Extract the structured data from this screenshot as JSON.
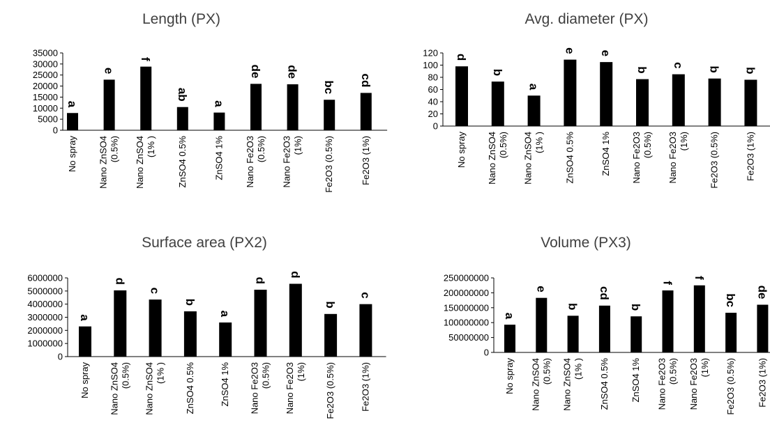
{
  "chart_data": [
    {
      "type": "bar",
      "title": "Length (PX)",
      "xlabel": "",
      "ylabel": "",
      "ylim": [
        0,
        35000
      ],
      "yticks": [
        "35000",
        "30000",
        "25000",
        "20000",
        "15000",
        "10000",
        "5000",
        "0"
      ],
      "categories": [
        [
          "No spray"
        ],
        [
          "Nano ZnSO4",
          "(0.5%)"
        ],
        [
          "Nano ZnSO4",
          "(1% )"
        ],
        [
          "ZnSO4 0.5%"
        ],
        [
          "ZnSO4 1%"
        ],
        [
          "Nano Fe2O3",
          "(0.5%)"
        ],
        [
          "Nano Fe2O3",
          "(1%)"
        ],
        [
          "Fe2O3 (0.5%)"
        ],
        [
          "Fe2O3 (1%)"
        ]
      ],
      "values": [
        7800,
        22900,
        28800,
        10500,
        8000,
        21000,
        20800,
        13800,
        16900
      ],
      "labels": [
        "a",
        "e",
        "f",
        "ab",
        "a",
        "de",
        "de",
        "bc",
        "cd"
      ],
      "grid": false,
      "bar_color": "#000000"
    },
    {
      "type": "bar",
      "title": "Avg. diameter (PX)",
      "xlabel": "",
      "ylabel": "",
      "ylim": [
        0,
        120
      ],
      "yticks": [
        "120",
        "100",
        "80",
        "60",
        "40",
        "20",
        "0"
      ],
      "categories": [
        [
          "No spray"
        ],
        [
          "Nano ZnSO4",
          "(0.5%)"
        ],
        [
          "Nano ZnSO4",
          "(1% )"
        ],
        [
          "ZnSO4 0.5%"
        ],
        [
          "ZnSO4 1%"
        ],
        [
          "Nano Fe2O3",
          "(0.5%)"
        ],
        [
          "Nano Fe2O3",
          "(1%)"
        ],
        [
          "Fe2O3 (0.5%)"
        ],
        [
          "Fe2O3 (1%)"
        ]
      ],
      "values": [
        98,
        73,
        50,
        109,
        105,
        77,
        85,
        78,
        76
      ],
      "labels": [
        "d",
        "b",
        "a",
        "e",
        "e",
        "b",
        "c",
        "b",
        "b"
      ],
      "grid": false,
      "bar_color": "#000000"
    },
    {
      "type": "bar",
      "title": "Surface area (PX2)",
      "xlabel": "",
      "ylabel": "",
      "ylim": [
        0,
        6000000
      ],
      "yticks": [
        "6000000",
        "5000000",
        "4000000",
        "3000000",
        "2000000",
        "1000000",
        "0"
      ],
      "categories": [
        [
          "No spray"
        ],
        [
          "Nano ZnSO4",
          "(0.5%)"
        ],
        [
          "Nano ZnSO4",
          "(1% )"
        ],
        [
          "ZnSO4 0.5%"
        ],
        [
          "ZnSO4 1%"
        ],
        [
          "Nano Fe2O3",
          "(0.5%)"
        ],
        [
          "Nano Fe2O3",
          "(1%)"
        ],
        [
          "Fe2O3 (0.5%)"
        ],
        [
          "Fe2O3 (1%)"
        ]
      ],
      "values": [
        2300000,
        5050000,
        4350000,
        3450000,
        2600000,
        5100000,
        5550000,
        3250000,
        4000000
      ],
      "labels": [
        "a",
        "d",
        "c",
        "b",
        "a",
        "d",
        "d",
        "b",
        "c"
      ],
      "grid": false,
      "bar_color": "#000000"
    },
    {
      "type": "bar",
      "title": "Volume (PX3)",
      "xlabel": "",
      "ylabel": "",
      "ylim": [
        0,
        250000000
      ],
      "yticks": [
        "250000000",
        "200000000",
        "150000000",
        "100000000",
        "50000000",
        "0"
      ],
      "categories": [
        [
          "No spray"
        ],
        [
          "Nano ZnSO4",
          "(0.5%)"
        ],
        [
          "Nano ZnSO4",
          "(1% )"
        ],
        [
          "ZnSO4 0.5%"
        ],
        [
          "ZnSO4 1%"
        ],
        [
          "Nano Fe2O3",
          "(0.5%)"
        ],
        [
          "Nano Fe2O3",
          "(1%)"
        ],
        [
          "Fe2O3 (0.5%)"
        ],
        [
          "Fe2O3 (1%)"
        ]
      ],
      "values": [
        93000000,
        183000000,
        123000000,
        157000000,
        121000000,
        208000000,
        225000000,
        133000000,
        160000000
      ],
      "labels": [
        "a",
        "e",
        "b",
        "cd",
        "b",
        "f",
        "f",
        "bc",
        "de"
      ],
      "grid": false,
      "bar_color": "#000000"
    }
  ]
}
